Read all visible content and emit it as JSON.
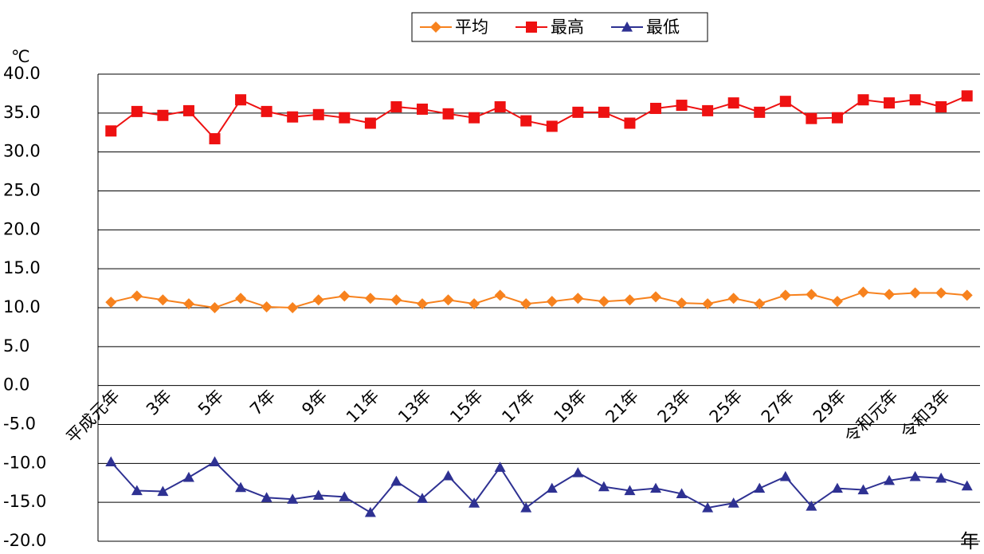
{
  "chart_data": {
    "type": "line",
    "y_label": "℃",
    "x_label": "年",
    "categories": [
      "平成元年",
      null,
      "3年",
      null,
      "5年",
      null,
      "7年",
      null,
      "9年",
      null,
      "11年",
      null,
      "13年",
      null,
      "15年",
      null,
      "17年",
      null,
      "19年",
      null,
      "21年",
      null,
      "23年",
      null,
      "25年",
      null,
      "27年",
      null,
      "29年",
      null,
      "令和元年",
      null,
      "令和3年",
      null
    ],
    "series": [
      {
        "name": "平均",
        "color": "#f7821e",
        "marker": "diamond",
        "values": [
          10.7,
          11.5,
          11.0,
          10.5,
          10.0,
          11.2,
          10.1,
          10.0,
          11.0,
          11.5,
          11.2,
          11.0,
          10.5,
          11.0,
          10.5,
          11.6,
          10.5,
          10.8,
          11.2,
          10.8,
          11.0,
          11.4,
          10.6,
          10.5,
          11.2,
          10.5,
          11.6,
          11.7,
          10.8,
          12.0,
          11.7,
          11.9,
          11.9,
          11.6
        ]
      },
      {
        "name": "最高",
        "color": "#ee1111",
        "marker": "square",
        "values": [
          32.7,
          35.2,
          34.7,
          35.3,
          31.7,
          36.7,
          35.2,
          34.5,
          34.8,
          34.4,
          33.7,
          35.8,
          35.5,
          34.9,
          34.4,
          35.8,
          34.0,
          33.3,
          35.1,
          35.1,
          33.7,
          35.6,
          36.0,
          35.3,
          36.3,
          35.1,
          36.5,
          34.3,
          34.4,
          36.7,
          36.3,
          36.7,
          35.8,
          37.2
        ]
      },
      {
        "name": "最低",
        "color": "#2e3192",
        "marker": "triangle",
        "values": [
          -9.8,
          -13.5,
          -13.6,
          -11.8,
          -9.8,
          -13.1,
          -14.4,
          -14.6,
          -14.1,
          -14.3,
          -16.3,
          -12.3,
          -14.5,
          -11.6,
          -15.1,
          -10.5,
          -15.7,
          -13.2,
          -11.2,
          -13.0,
          -13.5,
          -13.2,
          -13.9,
          -15.7,
          -15.1,
          -13.2,
          -11.7,
          -15.5,
          -13.2,
          -13.4,
          -12.2,
          -11.7,
          -11.9,
          -12.9
        ]
      }
    ],
    "ylim": [
      -20,
      40
    ],
    "yticks": [
      {
        "value": -20,
        "label": "-20.0"
      },
      {
        "value": -15,
        "label": "-15.0"
      },
      {
        "value": -10,
        "label": "-10.0"
      },
      {
        "value": -5,
        "label": "-5.0"
      },
      {
        "value": 0,
        "label": "0.0"
      },
      {
        "value": 5,
        "label": "5.0"
      },
      {
        "value": 10,
        "label": "10.0"
      },
      {
        "value": 15,
        "label": "15.0"
      },
      {
        "value": 20,
        "label": "20.0"
      },
      {
        "value": 25,
        "label": "25.0"
      },
      {
        "value": 30,
        "label": "30.0"
      },
      {
        "value": 35,
        "label": "35.0"
      },
      {
        "value": 40,
        "label": "40.0"
      }
    ],
    "grid": true,
    "legend": "top"
  }
}
